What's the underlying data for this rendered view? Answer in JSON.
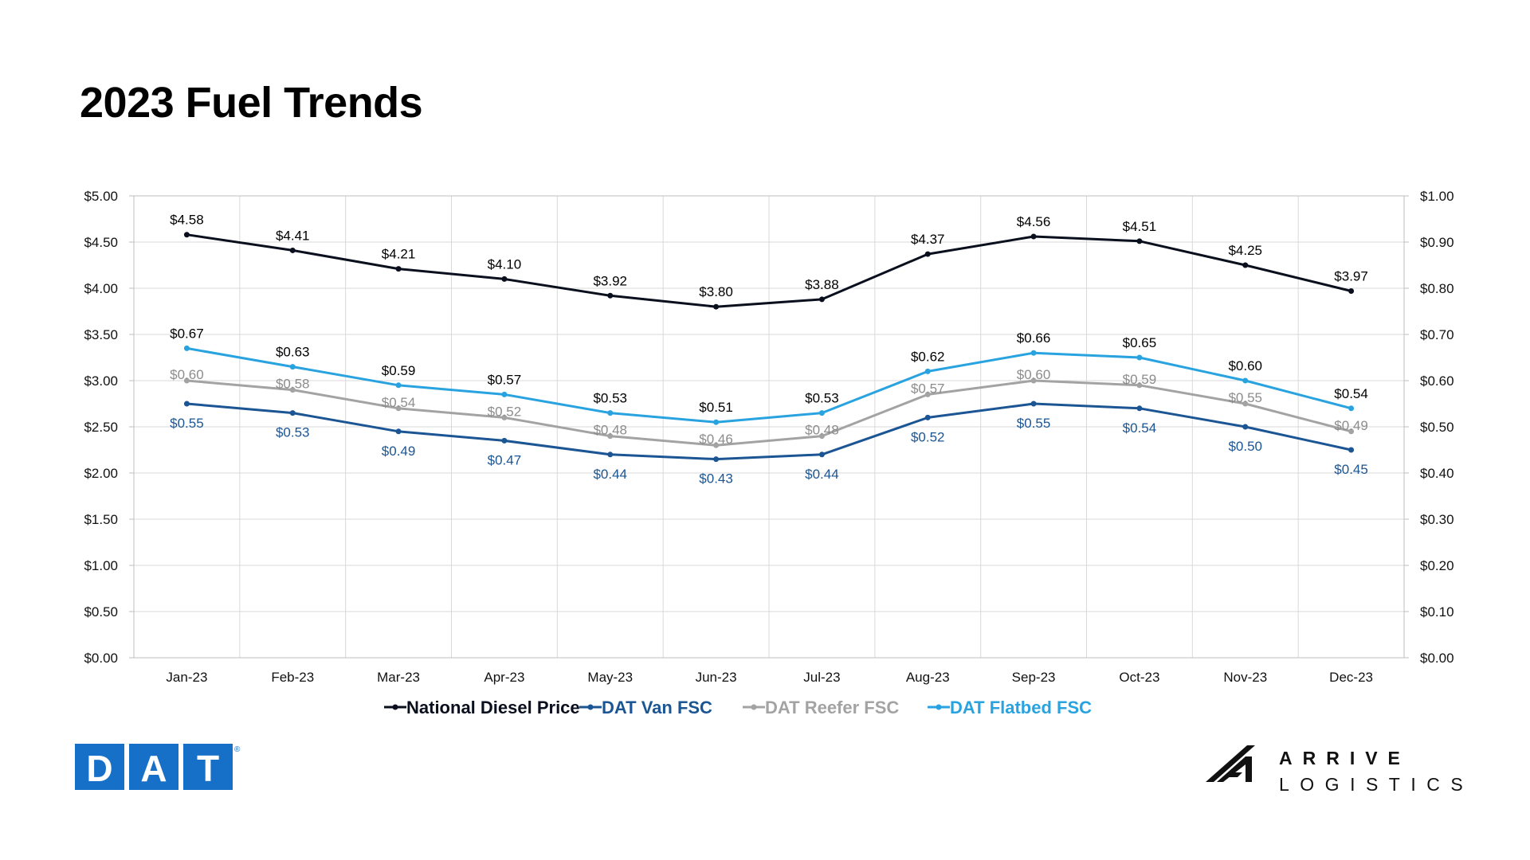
{
  "title": "2023 Fuel Trends",
  "chart_data": {
    "type": "line",
    "title": "2023 Fuel Trends",
    "categories": [
      "Jan-23",
      "Feb-23",
      "Mar-23",
      "Apr-23",
      "May-23",
      "Jun-23",
      "Jul-23",
      "Aug-23",
      "Sep-23",
      "Oct-23",
      "Nov-23",
      "Dec-23"
    ],
    "y_left": {
      "range": [
        0,
        5
      ],
      "ticks": [
        "$0.00",
        "$0.50",
        "$1.00",
        "$1.50",
        "$2.00",
        "$2.50",
        "$3.00",
        "$3.50",
        "$4.00",
        "$4.50",
        "$5.00"
      ]
    },
    "y_right": {
      "range": [
        0,
        1
      ],
      "ticks": [
        "$0.00",
        "$0.10",
        "$0.20",
        "$0.30",
        "$0.40",
        "$0.50",
        "$0.60",
        "$0.70",
        "$0.80",
        "$0.90",
        "$1.00"
      ]
    },
    "grid": true,
    "legend_position": "bottom",
    "series": [
      {
        "name": "National Diesel Price",
        "axis": "left",
        "color": "#0a0f1e",
        "label_color": "#000000",
        "values": [
          4.58,
          4.41,
          4.21,
          4.1,
          3.92,
          3.8,
          3.88,
          4.37,
          4.56,
          4.51,
          4.25,
          3.97
        ],
        "labels": [
          "$4.58",
          "$4.41",
          "$4.21",
          "$4.10",
          "$3.92",
          "$3.80",
          "$3.88",
          "$4.37",
          "$4.56",
          "$4.51",
          "$4.25",
          "$3.97"
        ]
      },
      {
        "name": "DAT Van FSC",
        "axis": "right",
        "color": "#1b5593",
        "label_color": "#1b5593",
        "values": [
          0.55,
          0.53,
          0.49,
          0.47,
          0.44,
          0.43,
          0.44,
          0.52,
          0.55,
          0.54,
          0.5,
          0.45
        ],
        "labels": [
          "$0.55",
          "$0.53",
          "$0.49",
          "$0.47",
          "$0.44",
          "$0.43",
          "$0.44",
          "$0.52",
          "$0.55",
          "$0.54",
          "$0.50",
          "$0.45"
        ]
      },
      {
        "name": "DAT Reefer FSC",
        "axis": "right",
        "color": "#a3a3a3",
        "label_color": "#8c8c8c",
        "values": [
          0.6,
          0.58,
          0.54,
          0.52,
          0.48,
          0.46,
          0.48,
          0.57,
          0.6,
          0.59,
          0.55,
          0.49
        ],
        "labels": [
          "$0.60",
          "$0.58",
          "$0.54",
          "$0.52",
          "$0.48",
          "$0.46",
          "$0.48",
          "$0.57",
          "$0.60",
          "$0.59",
          "$0.55",
          "$0.49"
        ]
      },
      {
        "name": "DAT Flatbed FSC",
        "axis": "right",
        "color": "#29a3e0",
        "label_color": "#000000",
        "values": [
          0.67,
          0.63,
          0.59,
          0.57,
          0.53,
          0.51,
          0.53,
          0.62,
          0.66,
          0.65,
          0.6,
          0.54
        ],
        "labels": [
          "$0.67",
          "$0.63",
          "$0.59",
          "$0.57",
          "$0.53",
          "$0.51",
          "$0.53",
          "$0.62",
          "$0.66",
          "$0.65",
          "$0.60",
          "$0.54"
        ]
      }
    ]
  },
  "logos": {
    "left": {
      "text": "DAT",
      "mark": "®",
      "color": "#1770c8"
    },
    "right": {
      "line1": "ARRIVE",
      "line2": "LOGISTICS",
      "color": "#111111"
    }
  }
}
